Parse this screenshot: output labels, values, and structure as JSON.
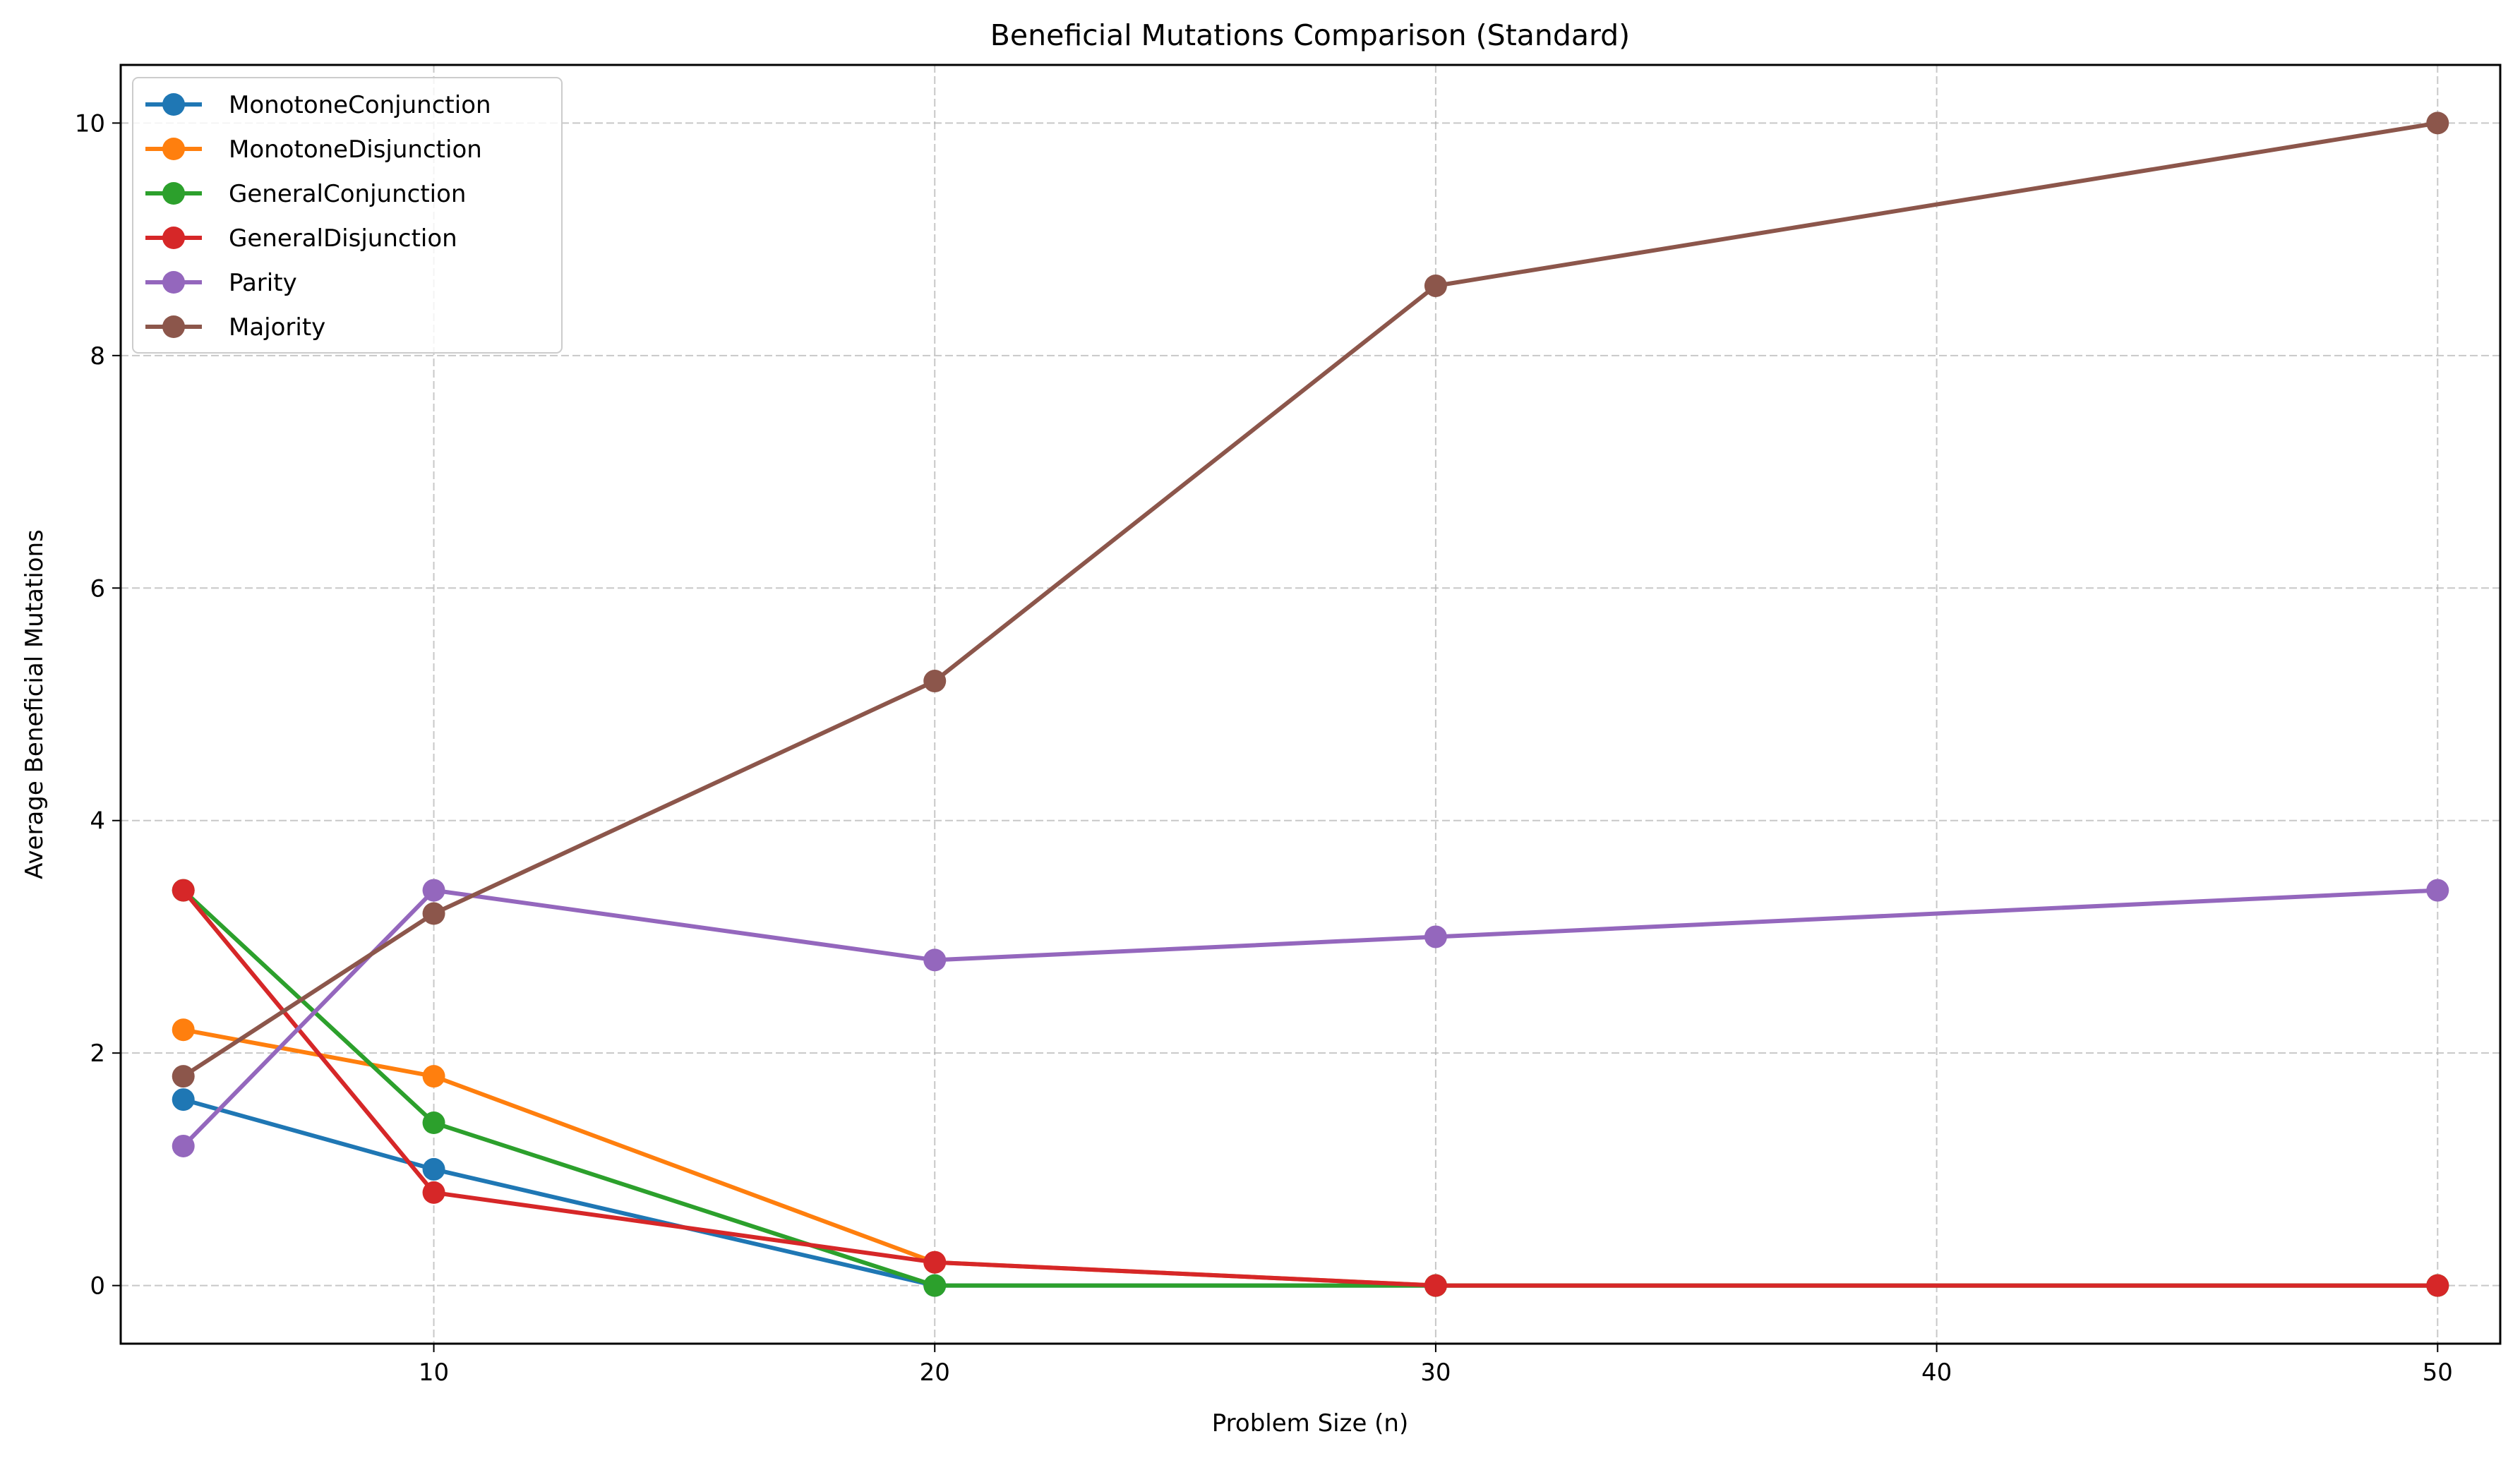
{
  "chart_data": {
    "type": "line",
    "title": "Beneficial Mutations Comparison (Standard)",
    "xlabel": "Problem Size (n)",
    "ylabel": "Average Beneficial Mutations",
    "x": [
      5,
      10,
      20,
      30,
      50
    ],
    "xlim": [
      3.75,
      51.25
    ],
    "ylim": [
      -0.5,
      10.5
    ],
    "xticks": [
      10,
      20,
      30,
      40,
      50
    ],
    "yticks": [
      0,
      2,
      4,
      6,
      8,
      10
    ],
    "grid": true,
    "grid_style": "dashed",
    "legend_position": "top-left",
    "series": [
      {
        "name": "MonotoneConjunction",
        "color": "#1f77b4",
        "values": [
          1.6,
          1.0,
          0.0,
          0.0,
          0.0
        ]
      },
      {
        "name": "MonotoneDisjunction",
        "color": "#ff7f0e",
        "values": [
          2.2,
          1.8,
          0.2,
          0.0,
          0.0
        ]
      },
      {
        "name": "GeneralConjunction",
        "color": "#2ca02c",
        "values": [
          3.4,
          1.4,
          0.0,
          0.0,
          0.0
        ]
      },
      {
        "name": "GeneralDisjunction",
        "color": "#d62728",
        "values": [
          3.4,
          0.8,
          0.2,
          0.0,
          0.0
        ]
      },
      {
        "name": "Parity",
        "color": "#9467bd",
        "values": [
          1.2,
          3.4,
          2.8,
          3.0,
          3.4
        ]
      },
      {
        "name": "Majority",
        "color": "#8c564b",
        "values": [
          1.8,
          3.2,
          5.2,
          8.6,
          10.0
        ]
      }
    ]
  }
}
